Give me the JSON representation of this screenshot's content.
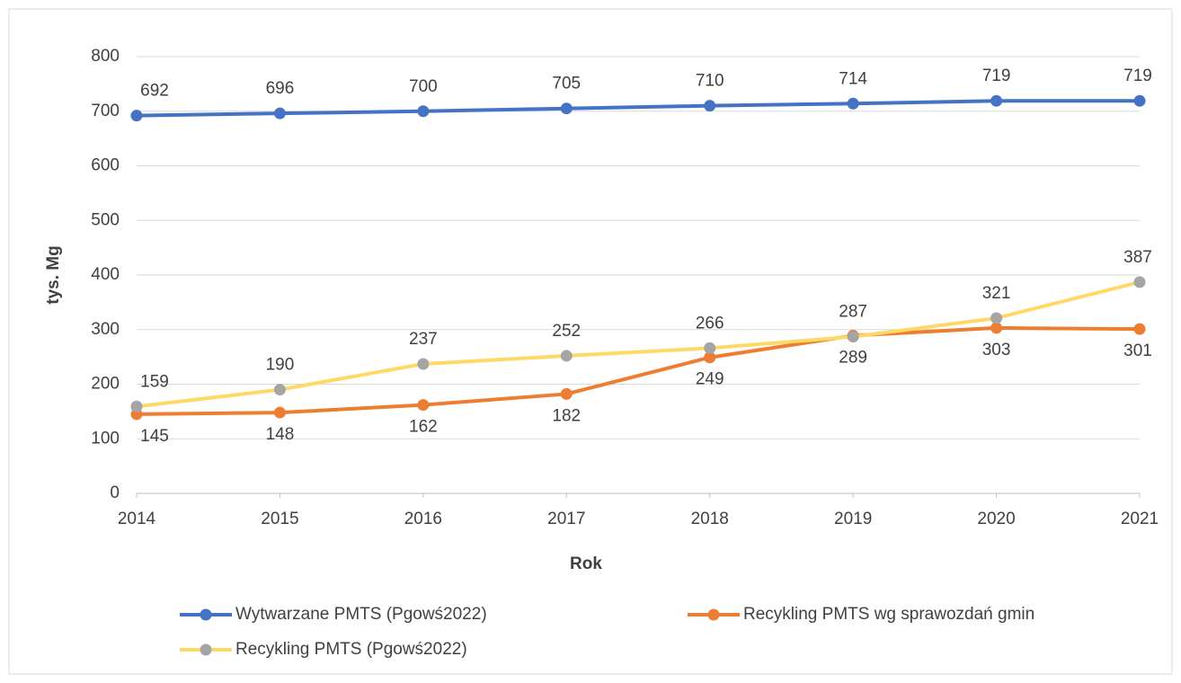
{
  "chart_data": {
    "type": "line",
    "x": [
      2014,
      2015,
      2016,
      2017,
      2018,
      2019,
      2020,
      2021
    ],
    "xlim": [
      2014,
      2021
    ],
    "xticks": [
      2014,
      2015,
      2016,
      2017,
      2018,
      2019,
      2020,
      2021
    ],
    "ylim": [
      0,
      800
    ],
    "yticks": [
      0,
      100,
      200,
      300,
      400,
      500,
      600,
      700,
      800
    ],
    "xlabel": "Rok",
    "ylabel": "tys. Mg",
    "grid": true,
    "legend": "bottom",
    "series": [
      {
        "name": "Wytwarzane PMTS (Pgowś2022)",
        "color": "#4472c4",
        "marker_color": "#4472c4",
        "label_position": "above",
        "values": [
          692,
          696,
          700,
          705,
          710,
          714,
          719,
          719
        ]
      },
      {
        "name": "Recykling PMTS wg sprawozdań gmin",
        "color": "#ed7d31",
        "marker_color": "#ed7d31",
        "label_position": "below",
        "values": [
          145,
          148,
          162,
          182,
          249,
          289,
          303,
          301
        ]
      },
      {
        "name": "Recykling PMTS (Pgowś2022)",
        "color": "#ffd966",
        "marker_color": "#a5a5a5",
        "label_position": "above",
        "values": [
          159,
          190,
          237,
          252,
          266,
          287,
          321,
          387
        ]
      }
    ]
  }
}
